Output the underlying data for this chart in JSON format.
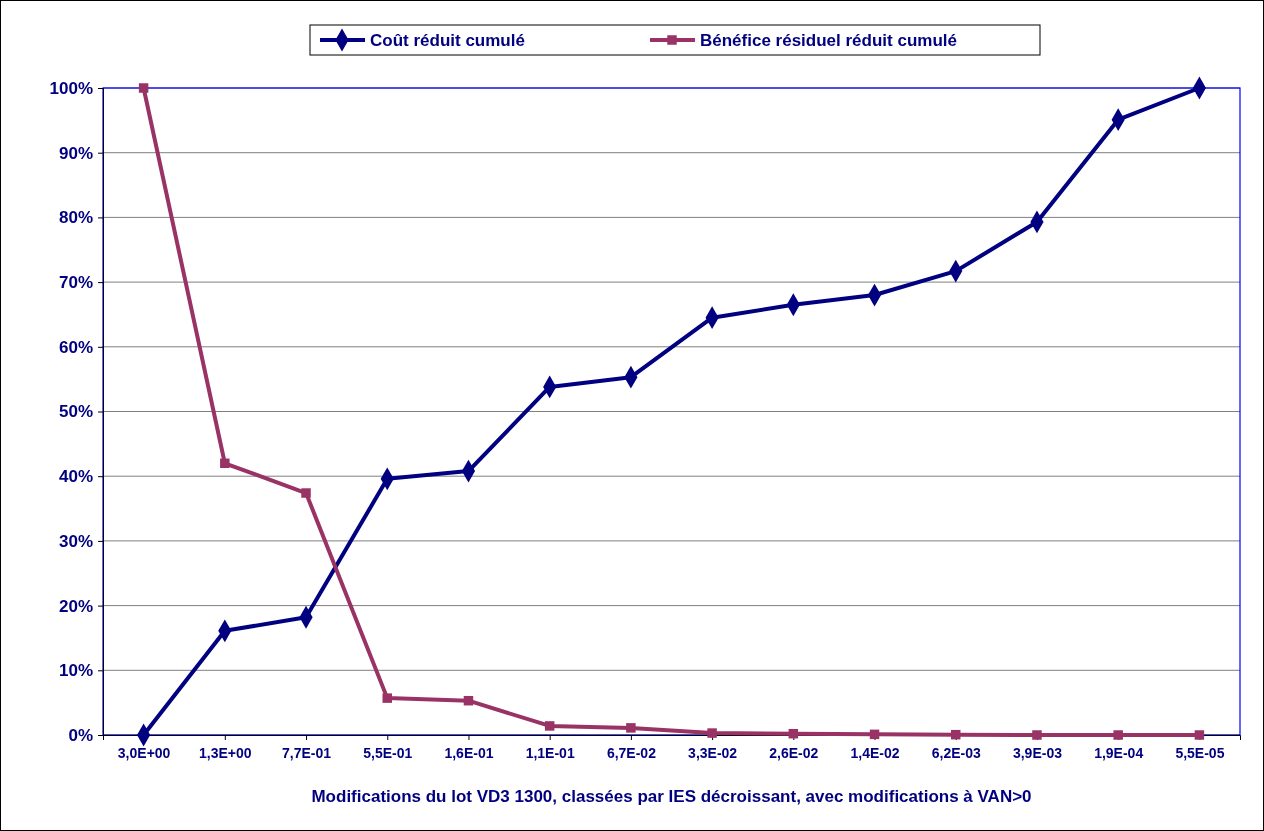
{
  "chart_data": {
    "type": "line",
    "xlabel": "Modifications du lot VD3 1300, classées par IES décroissant, avec modifications à VAN>0",
    "categories": [
      "3,0E+00",
      "1,3E+00",
      "7,7E-01",
      "5,5E-01",
      "1,6E-01",
      "1,1E-01",
      "6,7E-02",
      "3,3E-02",
      "2,6E-02",
      "1,4E-02",
      "6,2E-03",
      "3,9E-03",
      "1,9E-04",
      "5,5E-05"
    ],
    "series": [
      {
        "name": "Coût réduit cumulé",
        "color": "#000080",
        "marker": "diamond",
        "values": [
          0,
          16.1,
          18.2,
          39.6,
          40.8,
          53.8,
          55.3,
          64.5,
          66.5,
          68,
          71.7,
          79.3,
          95.1,
          100
        ]
      },
      {
        "name": "Bénéfice résiduel réduit cumulé",
        "color": "#993366",
        "marker": "square",
        "values": [
          100,
          42,
          37.4,
          5.7,
          5.3,
          1.4,
          1.1,
          0.3,
          0.2,
          0.1,
          0.05,
          0,
          0,
          0
        ]
      }
    ],
    "ylim": [
      0,
      100
    ],
    "yticks": [
      {
        "value": 0,
        "label": "0%"
      },
      {
        "value": 10,
        "label": "10%"
      },
      {
        "value": 20,
        "label": "20%"
      },
      {
        "value": 30,
        "label": "30%"
      },
      {
        "value": 40,
        "label": "40%"
      },
      {
        "value": 50,
        "label": "50%"
      },
      {
        "value": 60,
        "label": "60%"
      },
      {
        "value": 70,
        "label": "70%"
      },
      {
        "value": 80,
        "label": "80%"
      },
      {
        "value": 90,
        "label": "90%"
      },
      {
        "value": 100,
        "label": "100%"
      }
    ],
    "grid": "y",
    "legend": "top",
    "line_style": "solid"
  }
}
